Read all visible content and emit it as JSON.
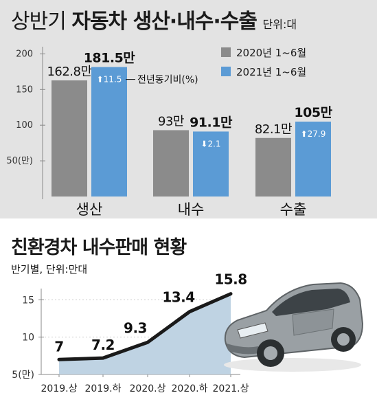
{
  "chart_data": [
    {
      "type": "bar",
      "title": "상반기",
      "title_bold": "자동차 생산·내수·수출",
      "unit_label": "단위:대",
      "categories": [
        "생산",
        "내수",
        "수출"
      ],
      "y_ticks": [
        {
          "value": 200,
          "label": "200"
        },
        {
          "value": 150,
          "label": "150"
        },
        {
          "value": 100,
          "label": "100"
        },
        {
          "value": 50,
          "label": "50(만)"
        }
      ],
      "ylim": [
        0,
        210
      ],
      "series": [
        {
          "name": "2020년 1~6월",
          "color": "#8b8b8b",
          "values": [
            162.8,
            93,
            82.1
          ],
          "labels": [
            "162.8만",
            "93만",
            "82.1만"
          ]
        },
        {
          "name": "2021년 1~6월",
          "color": "#5b9bd5",
          "values": [
            181.5,
            91.1,
            105
          ],
          "labels": [
            "181.5만",
            "91.1만",
            "105만"
          ]
        }
      ],
      "change_badges": [
        {
          "direction": "up",
          "value": "11.5"
        },
        {
          "direction": "down",
          "value": "2.1"
        },
        {
          "direction": "up",
          "value": "27.9"
        }
      ],
      "annotation": "전년동기비(%)"
    },
    {
      "type": "area",
      "title": "친환경차 내수판매 현황",
      "subtitle": "반기별, 단위:만대",
      "categories": [
        "2019.상",
        "2019.하",
        "2020.상",
        "2020.하",
        "2021.상"
      ],
      "values": [
        7,
        7.2,
        9.3,
        13.4,
        15.8
      ],
      "value_labels": [
        "7",
        "7.2",
        "9.3",
        "13.4",
        "15.8"
      ],
      "y_ticks": [
        {
          "value": 15,
          "label": "15"
        },
        {
          "value": 10,
          "label": "10"
        },
        {
          "value": 5,
          "label": "5(만)"
        }
      ],
      "ylim": [
        5,
        16.5
      ],
      "line_color": "#1a1a1a",
      "fill_color": "#bfd3e3"
    }
  ],
  "icons": [
    "car-illustration"
  ]
}
